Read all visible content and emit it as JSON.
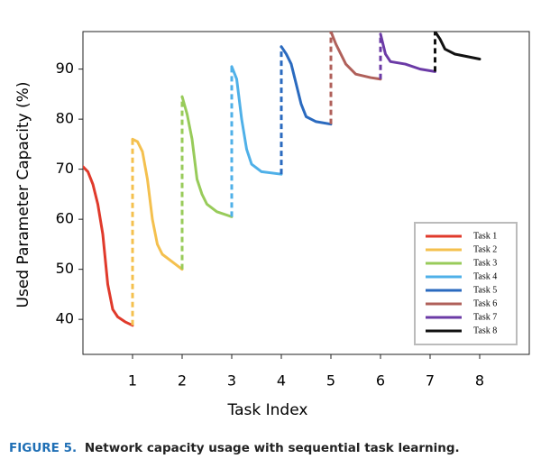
{
  "chart_data": {
    "type": "line",
    "x_label": "Task Index",
    "y_label": "Used  Parameter Capacity (%)",
    "xlim": [
      0,
      9
    ],
    "ylim": [
      33,
      97.5
    ],
    "xticks": [
      1,
      2,
      3,
      4,
      5,
      6,
      7,
      8
    ],
    "yticks": [
      40,
      50,
      60,
      70,
      80,
      90
    ],
    "legend": "lower right",
    "series": [
      {
        "name": "Task 1",
        "color": "#e03a2b",
        "x": [
          0,
          0.1,
          0.2,
          0.3,
          0.4,
          0.45,
          0.5,
          0.6,
          0.7,
          0.85,
          1.0
        ],
        "values": [
          70.5,
          69.5,
          67,
          63,
          57,
          52,
          47,
          42,
          40.5,
          39.5,
          38.8
        ]
      },
      {
        "name": "Task 2",
        "color": "#f4c04e",
        "x": [
          1,
          1.1,
          1.2,
          1.3,
          1.4,
          1.5,
          1.6,
          1.8,
          2.0
        ],
        "values": [
          76,
          75.5,
          73.5,
          68,
          60,
          55,
          53,
          51.5,
          50
        ]
      },
      {
        "name": "Task 3",
        "color": "#98cb5a",
        "x": [
          2,
          2.1,
          2.2,
          2.3,
          2.4,
          2.5,
          2.7,
          3.0
        ],
        "values": [
          84.5,
          81,
          76,
          68,
          65,
          63,
          61.5,
          60.5
        ]
      },
      {
        "name": "Task 4",
        "color": "#4fb0e8",
        "x": [
          3,
          3.1,
          3.2,
          3.3,
          3.4,
          3.6,
          4.0
        ],
        "values": [
          90.5,
          88,
          80,
          74,
          71,
          69.5,
          69
        ]
      },
      {
        "name": "Task 5",
        "color": "#2a6abf",
        "x": [
          4,
          4.1,
          4.2,
          4.3,
          4.4,
          4.5,
          4.7,
          5.0
        ],
        "values": [
          94.5,
          93,
          91,
          87,
          83,
          80.5,
          79.5,
          79
        ]
      },
      {
        "name": "Task 6",
        "color": "#b0605a",
        "x": [
          5,
          5.1,
          5.3,
          5.5,
          5.8,
          6.0
        ],
        "values": [
          97.5,
          95,
          91,
          89,
          88.3,
          88
        ]
      },
      {
        "name": "Task 7",
        "color": "#6b3aa6",
        "x": [
          6,
          6.1,
          6.2,
          6.5,
          6.8,
          7.1
        ],
        "values": [
          97,
          93,
          91.5,
          91,
          90,
          89.5
        ]
      },
      {
        "name": "Task 8",
        "color": "#111111",
        "x": [
          7.1,
          7.2,
          7.3,
          7.5,
          8.0
        ],
        "values": [
          97.5,
          96,
          94,
          93,
          92
        ]
      }
    ]
  },
  "caption": {
    "label": "FIGURE 5.",
    "text": "Network capacity usage with sequential task learning."
  }
}
